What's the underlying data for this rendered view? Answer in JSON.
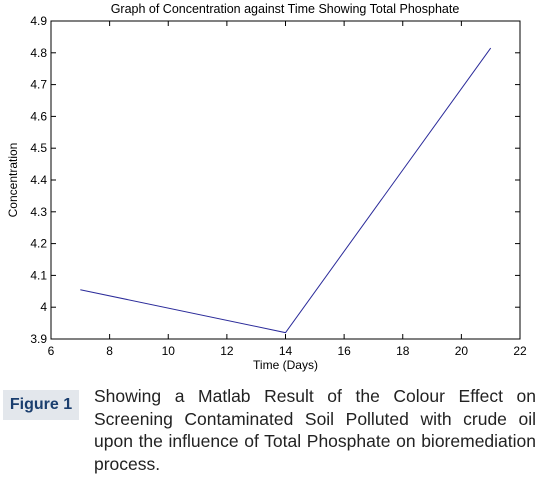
{
  "chart_data": {
    "type": "line",
    "title": "Graph of Concentration against Time Showing Total Phosphate",
    "xlabel": "Time (Days)",
    "ylabel": "Concentration",
    "xlim": [
      6,
      22
    ],
    "ylim": [
      3.9,
      4.9
    ],
    "xticks": [
      6,
      8,
      10,
      12,
      14,
      16,
      18,
      20,
      22
    ],
    "xtick_labels": [
      "6",
      "8",
      "10",
      "12",
      "14",
      "16",
      "18",
      "20",
      "22"
    ],
    "yticks": [
      3.9,
      4.0,
      4.1,
      4.2,
      4.3,
      4.4,
      4.5,
      4.6,
      4.7,
      4.8,
      4.9
    ],
    "ytick_labels": [
      "3.9",
      "4",
      "4.1",
      "4.2",
      "4.3",
      "4.4",
      "4.5",
      "4.6",
      "4.7",
      "4.8",
      "4.9"
    ],
    "grid": false,
    "series": [
      {
        "x": [
          7,
          14,
          21
        ],
        "y": [
          4.055,
          3.92,
          4.815
        ],
        "color": "#2b2b9a"
      }
    ]
  },
  "caption": {
    "label": "Figure 1",
    "text": "Showing a Matlab Result of the Colour Effect on Screening Contaminated Soil Polluted with crude oil upon the influence of Total Phosphate on bioremediation process."
  }
}
